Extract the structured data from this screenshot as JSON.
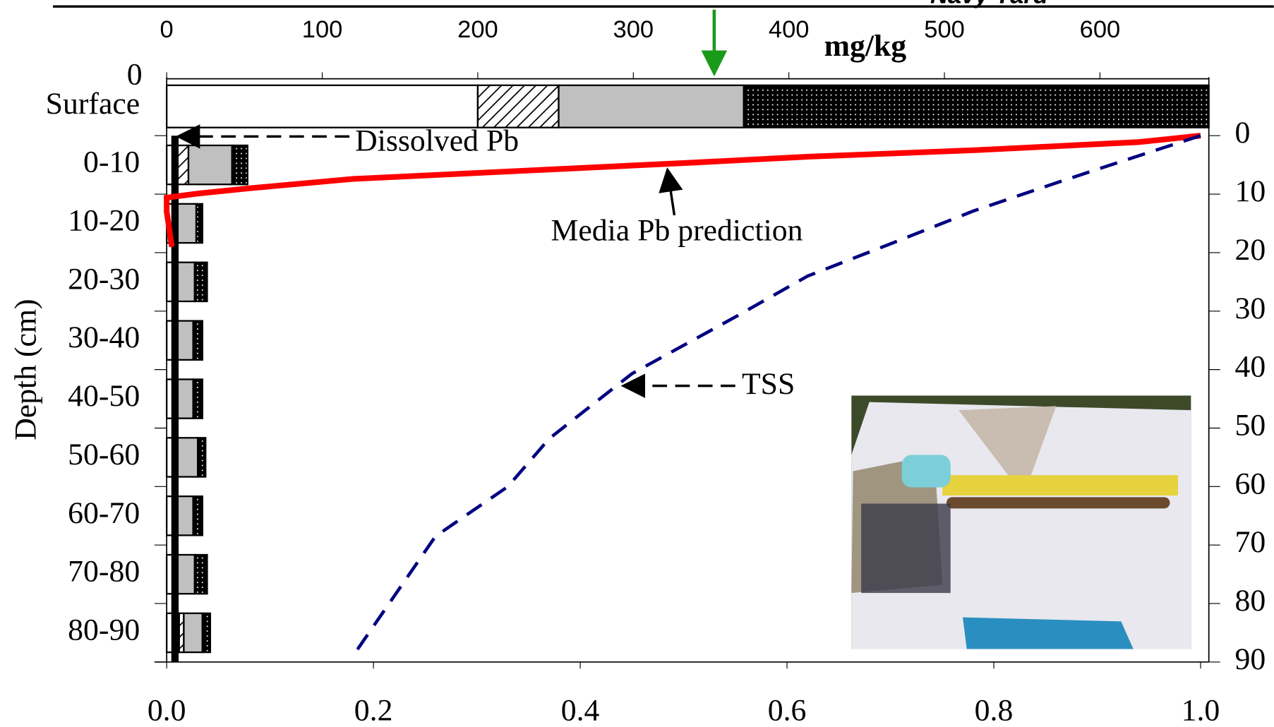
{
  "chart_data": [
    {
      "type": "bar",
      "title": "Navy Yard",
      "title_color": "#8b0000",
      "x_label": "mg/kg",
      "y_label": "Depth (cm)",
      "categories": [
        "Surface",
        "0-10",
        "10-20",
        "20-30",
        "30-40",
        "40-50",
        "50-60",
        "60-70",
        "70-80",
        "80-90"
      ],
      "series": [
        {
          "pattern": "solid",
          "color": "#ffffff",
          "values": [
            200,
            7,
            5,
            5,
            5,
            5,
            5,
            5,
            5,
            8
          ]
        },
        {
          "pattern": "hatch",
          "color": "#000000",
          "values": [
            52,
            7,
            0,
            0,
            0,
            0,
            0,
            0,
            0,
            3
          ]
        },
        {
          "pattern": "solid",
          "color": "#c0c0c0",
          "values": [
            119,
            28,
            14,
            13,
            12,
            12,
            15,
            12,
            13,
            12
          ]
        },
        {
          "pattern": "dots",
          "color": "#000000",
          "values": [
            299,
            10,
            4,
            8,
            6,
            6,
            5,
            6,
            8,
            5
          ]
        }
      ],
      "xlim": [
        0,
        670
      ],
      "xticks": [
        0,
        100,
        200,
        300,
        400,
        500,
        600
      ],
      "yticks_left": [
        0
      ],
      "marker": {
        "value": 352,
        "color": "#1a9a1a"
      }
    },
    {
      "type": "line",
      "xlim": [
        0,
        1.008
      ],
      "xticks": [
        {
          "value": 0,
          "label": "0.0"
        },
        {
          "value": 0.2,
          "label": "0.2"
        },
        {
          "value": 0.4,
          "label": "0.4"
        },
        {
          "value": 0.6,
          "label": "0.6"
        },
        {
          "value": 0.8,
          "label": "0.8"
        },
        {
          "value": 1.0,
          "label": "1.0"
        }
      ],
      "ylim": [
        90,
        0
      ],
      "yticks": [
        0,
        10,
        20,
        30,
        40,
        50,
        60,
        70,
        80,
        90
      ],
      "series": [
        {
          "name": "Dissolved Pb",
          "color": "#000000",
          "dash": "none",
          "width": 9,
          "x": [
            0.008,
            0.008
          ],
          "values": [
            0,
            90
          ]
        },
        {
          "name": "Media Pb prediction",
          "color": "#ff0000",
          "dash": "none",
          "width": 7,
          "x": [
            1.0,
            0.94,
            0.78,
            0.62,
            0.51,
            0.31,
            0.18,
            0.08,
            0.03,
            0.0,
            0.0,
            0.005
          ],
          "values": [
            0,
            1.1,
            2.5,
            3.6,
            4.6,
            6.3,
            7.4,
            9.0,
            9.9,
            10.6,
            13,
            19
          ]
        },
        {
          "name": "TSS",
          "color": "#000080",
          "dash": "22 14",
          "width": 4,
          "x": [
            1.0,
            0.92,
            0.86,
            0.78,
            0.7,
            0.62,
            0.55,
            0.45,
            0.37,
            0.33,
            0.26,
            0.18
          ],
          "values": [
            0,
            4.6,
            8.1,
            12.9,
            18.5,
            24,
            31,
            40.7,
            51.8,
            60,
            68.5,
            89
          ]
        }
      ]
    }
  ]
}
